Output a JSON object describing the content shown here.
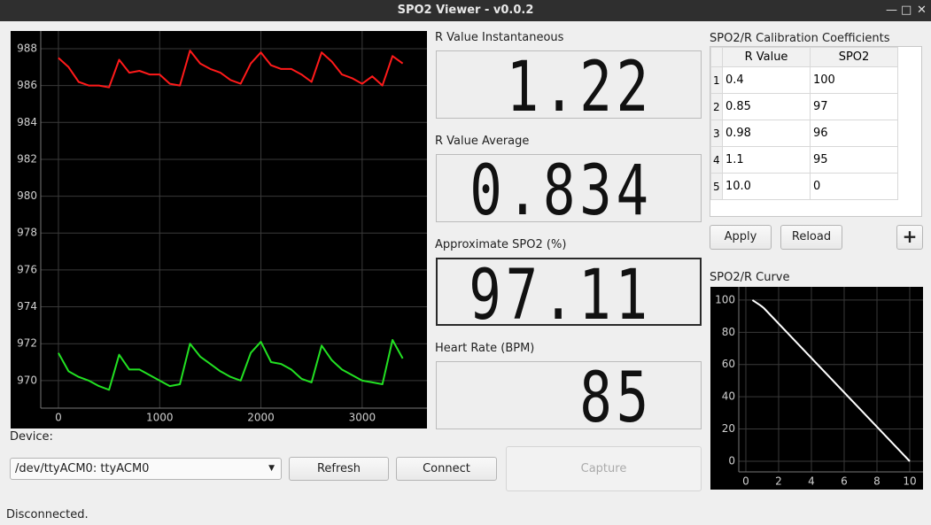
{
  "window": {
    "title": "SPO2 Viewer - v0.0.2"
  },
  "plot": {
    "type": "line",
    "x": [
      0,
      100,
      200,
      300,
      400,
      500,
      600,
      700,
      800,
      900,
      1000,
      1100,
      1200,
      1300,
      1400,
      1500,
      1600,
      1700,
      1800,
      1900,
      2000,
      2100,
      2200,
      2300,
      2400,
      2500,
      2600,
      2700,
      2800,
      2900,
      3000,
      3100,
      3200,
      3300,
      3400
    ],
    "series": [
      {
        "color": "#ff1a1a",
        "values": [
          987.5,
          987.0,
          986.2,
          986.0,
          986.0,
          985.9,
          987.4,
          986.7,
          986.8,
          986.6,
          986.6,
          986.1,
          986.0,
          987.9,
          987.2,
          986.9,
          986.7,
          986.3,
          986.1,
          987.2,
          987.8,
          987.1,
          986.9,
          986.9,
          986.6,
          986.2,
          987.8,
          987.3,
          986.6,
          986.4,
          986.1,
          986.5,
          986.0,
          987.6,
          987.2
        ]
      },
      {
        "color": "#22e022",
        "values": [
          971.5,
          970.5,
          970.2,
          970.0,
          969.7,
          969.5,
          971.4,
          970.6,
          970.6,
          970.3,
          970.0,
          969.7,
          969.8,
          972.0,
          971.3,
          970.9,
          970.5,
          970.2,
          970.0,
          971.5,
          972.1,
          971.0,
          970.9,
          970.6,
          970.1,
          969.9,
          971.9,
          971.1,
          970.6,
          970.3,
          970.0,
          969.9,
          969.8,
          972.2,
          971.2
        ]
      }
    ],
    "xlim": [
      -472,
      3640
    ],
    "ylim": [
      967.4,
      988.96
    ],
    "xticks": [
      0,
      1000,
      2000,
      3000
    ],
    "yticks": [
      970,
      972,
      974,
      976,
      978,
      980,
      982,
      984,
      986,
      988
    ],
    "grid": true
  },
  "displays": [
    {
      "label": "R Value Instantaneous",
      "value": "1.22"
    },
    {
      "label": "R Value Average",
      "value": "0.834"
    },
    {
      "label": "Approximate SPO2 (%)",
      "value": "97.11"
    },
    {
      "label": "Heart Rate (BPM)",
      "value": "85"
    }
  ],
  "calibration": {
    "title": "SPO2/R Calibration Coefficients",
    "columns": [
      "R Value",
      "SPO2"
    ],
    "row_numbers": [
      "1",
      "2",
      "3",
      "4",
      "5"
    ],
    "rows": [
      [
        "0.4",
        "100"
      ],
      [
        "0.85",
        "97"
      ],
      [
        "0.98",
        "96"
      ],
      [
        "1.1",
        "95"
      ],
      [
        "10.0",
        "0"
      ]
    ],
    "apply": "Apply",
    "reload": "Reload",
    "add": "+"
  },
  "curve": {
    "type": "line",
    "title": "SPO2/R Curve",
    "x": [
      0.4,
      0.85,
      0.98,
      1.1,
      10
    ],
    "values": [
      100,
      97,
      96,
      95,
      0
    ],
    "color": "#ffffff",
    "xlim": [
      -2.16,
      10.81
    ],
    "ylim": [
      -17.6,
      108.2
    ],
    "xticks": [
      0,
      2,
      4,
      6,
      8,
      10
    ],
    "yticks": [
      0,
      20,
      40,
      60,
      80,
      100
    ],
    "grid": true
  },
  "device": {
    "label": "Device:",
    "selected": "/dev/ttyACM0: ttyACM0",
    "refresh": "Refresh",
    "connect": "Connect",
    "capture": "Capture"
  },
  "status": "Disconnected."
}
